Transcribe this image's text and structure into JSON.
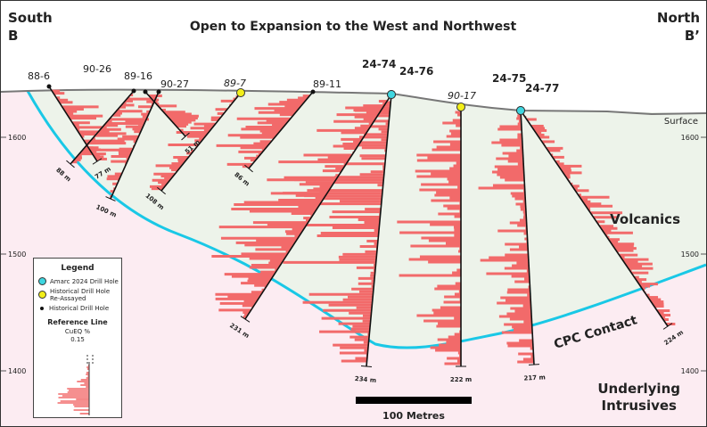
{
  "title": "Open to Expansion to the West and Northwest",
  "left_label": {
    "line1": "South",
    "line2": "B"
  },
  "right_label": {
    "line1": "North",
    "line2": "B’"
  },
  "surface_label": "Surface",
  "volcanics_label": "Volcanics",
  "contact_label": "CPC Contact",
  "intrusives_label": {
    "line1": "Underlying",
    "line2": "Intrusives"
  },
  "elevations": [
    "1600",
    "1500",
    "1400"
  ],
  "scale_bar_label": "100 Metres",
  "colors": {
    "amarc_hole": "#3fd6e0",
    "reassayed_hole": "#f2ee1a",
    "historical_hole": "#111111",
    "grade_bars": "#f26a6a",
    "contact": "#19c8e6",
    "volcanics": "#edf3ea",
    "intrusives": "#fcecf2"
  },
  "drill_holes": [
    {
      "name": "88-6",
      "type": "historical",
      "depth": "77 m"
    },
    {
      "name": "90-26",
      "type": "historical",
      "depth": "88 m"
    },
    {
      "name": "89-16",
      "type": "historical",
      "depth": "51 m"
    },
    {
      "name": "90-27",
      "type": "historical",
      "depth": "100 m"
    },
    {
      "name": "89-7",
      "type": "reassayed",
      "depth": "108 m"
    },
    {
      "name": "89-11",
      "type": "historical",
      "depth": "86 m"
    },
    {
      "name": "24-74",
      "type": "amarc",
      "depth": "231 m"
    },
    {
      "name": "24-76",
      "type": "amarc",
      "depth": "234 m"
    },
    {
      "name": "90-17",
      "type": "reassayed",
      "depth": "222 m"
    },
    {
      "name": "24-75",
      "type": "amarc",
      "depth": "217 m"
    },
    {
      "name": "24-77",
      "type": "amarc",
      "depth": "224 m"
    }
  ],
  "legend": {
    "title": "Legend",
    "items": [
      "Amarc 2024 Drill Hole",
      "Historical Drill Hole Re-Assayed",
      "Historical Drill Hole"
    ],
    "reference_title": "Reference Line",
    "reference_unit": "CuEQ %",
    "reference_value": "0.15"
  }
}
